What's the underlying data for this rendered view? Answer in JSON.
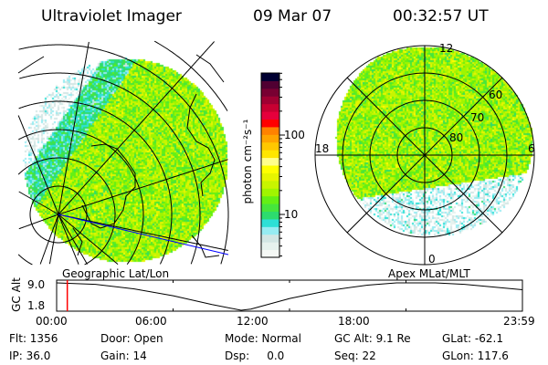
{
  "header": {
    "instrument": "Ultraviolet Imager",
    "date": "09 Mar 07",
    "time": "00:32:57 UT"
  },
  "left_map": {
    "label": "Geographic Lat/Lon",
    "projection": "geographic",
    "colors": {
      "orbit_track": "#0000ff",
      "grid": "#000000"
    }
  },
  "right_map": {
    "label": "Apex MLat/MLT",
    "mlt_labels": [
      "12",
      "18",
      "6",
      "0"
    ],
    "lat_labels": [
      "60",
      "70",
      "80"
    ]
  },
  "colorbar": {
    "unit_label": "photon cm⁻²s⁻¹",
    "scale": "log",
    "tick_labels": [
      "100",
      "10"
    ],
    "colors": [
      "#f5f8f5",
      "#e6f2ee",
      "#d2e6e4",
      "#96ecf2",
      "#2de0d6",
      "#2ddc6e",
      "#46e63c",
      "#64f014",
      "#a0f500",
      "#c8f500",
      "#e6f500",
      "#ffff00",
      "#ffff8c",
      "#ffe600",
      "#ffc800",
      "#ffa500",
      "#ff8200",
      "#ff0000",
      "#e6003c",
      "#c80032",
      "#a00032",
      "#780032",
      "#500032",
      "#000032"
    ]
  },
  "altitude_plot": {
    "ylabel": "GC Alt",
    "y_ticks": [
      "9.0",
      "1.8"
    ],
    "x_ticks": [
      "00:00",
      "06:00",
      "12:00",
      "18:00",
      "23:59"
    ],
    "current_time_marker_color": "#ff0000",
    "current_time": "00:32:57"
  },
  "status": {
    "flt": "Flt: 1356",
    "ip": "IP: 36.0",
    "door": "Door: Open",
    "gain": "Gain: 14",
    "mode": "Mode: Normal",
    "dsp": "Dsp:     0.0",
    "gc_alt": "GC Alt: 9.1 Re",
    "seq": "Seq: 22",
    "glat": "GLat: -62.1",
    "glon": "GLon: 117.6"
  }
}
